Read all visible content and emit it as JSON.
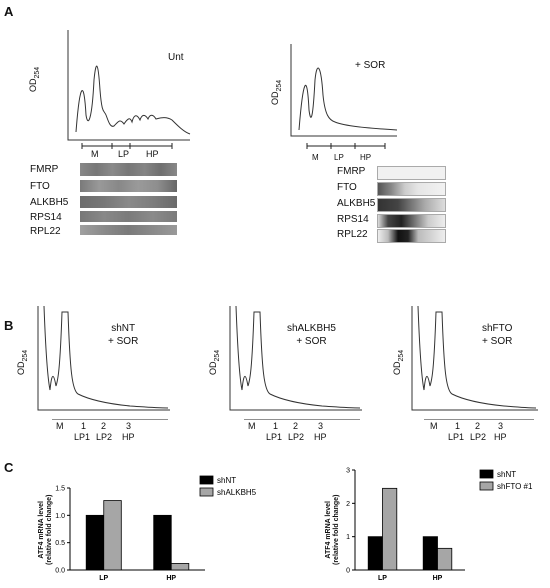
{
  "panel_a": {
    "label": "A",
    "left": {
      "condition": "Unt",
      "od_label_main": "OD",
      "od_label_sub": "254",
      "fractions": [
        "M",
        "LP",
        "HP"
      ],
      "blots": [
        "FMRP",
        "FTO",
        "ALKBH5",
        "RPS14",
        "RPL22"
      ]
    },
    "right": {
      "condition": "+ SOR",
      "od_label_main": "OD",
      "od_label_sub": "254",
      "fractions": [
        "M",
        "LP",
        "HP"
      ],
      "blots": [
        "FMRP",
        "FTO",
        "ALKBH5",
        "RPS14",
        "RPL22"
      ]
    }
  },
  "panel_b": {
    "label": "B",
    "profiles": [
      {
        "condition_line1": "shNT",
        "condition_line2": "+ SOR",
        "od_label_main": "OD",
        "od_label_sub": "254",
        "fractions_top": [
          "M",
          "1",
          "2",
          "3"
        ],
        "fractions_bottom": [
          "LP1",
          "LP2",
          "HP"
        ]
      },
      {
        "condition_line1": "shALKBH5",
        "condition_line2": "+ SOR",
        "od_label_main": "OD",
        "od_label_sub": "254",
        "fractions_top": [
          "M",
          "1",
          "2",
          "3"
        ],
        "fractions_bottom": [
          "LP1",
          "LP2",
          "HP"
        ]
      },
      {
        "condition_line1": "shFTO",
        "condition_line2": "+ SOR",
        "od_label_main": "OD",
        "od_label_sub": "254",
        "fractions_top": [
          "M",
          "1",
          "2",
          "3"
        ],
        "fractions_bottom": [
          "LP1",
          "LP2",
          "HP"
        ]
      }
    ]
  },
  "panel_c": {
    "label": "C",
    "ylabel_line1": "ATF4 mRNA level",
    "ylabel_line2": "(relative fold change)"
  },
  "chart_data": [
    {
      "type": "bar",
      "categories": [
        "LP",
        "HP"
      ],
      "series": [
        {
          "name": "shNT",
          "values": [
            1.0,
            1.0
          ],
          "color": "#000000"
        },
        {
          "name": "shALKBH5",
          "values": [
            1.27,
            0.12
          ],
          "color": "#a6a6a6"
        }
      ],
      "ylabel": "ATF4 mRNA level (relative fold change)",
      "ylim": [
        0,
        1.5
      ],
      "yticks": [
        "0.0",
        "0.5",
        "1.0",
        "1.5"
      ],
      "legend": "top-right"
    },
    {
      "type": "bar",
      "categories": [
        "LP",
        "HP"
      ],
      "series": [
        {
          "name": "shNT",
          "values": [
            1.0,
            1.0
          ],
          "color": "#000000"
        },
        {
          "name": "shFTO #1",
          "values": [
            2.45,
            0.65
          ],
          "color": "#a6a6a6"
        }
      ],
      "ylabel": "ATF4 mRNA level (relative fold change)",
      "ylim": [
        0,
        3
      ],
      "yticks": [
        "0",
        "1",
        "2",
        "3"
      ],
      "legend": "top-right"
    }
  ]
}
